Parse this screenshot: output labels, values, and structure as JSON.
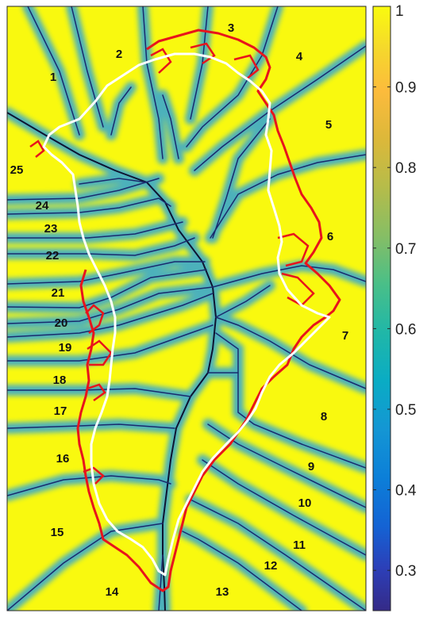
{
  "chart_data": {
    "type": "heatmap",
    "title": "",
    "xlabel": "",
    "ylabel": "",
    "colormap": "parula",
    "color_limits": [
      0.25,
      1
    ],
    "colorbar": {
      "ticks": [
        0.3,
        0.4,
        0.5,
        0.6,
        0.7,
        0.8,
        0.9,
        1
      ],
      "tick_labels": [
        "0.3",
        "0.4",
        "0.5",
        "0.6",
        "0.7",
        "0.8",
        "0.9",
        "1"
      ]
    },
    "regions": [
      "1",
      "2",
      "3",
      "4",
      "5",
      "6",
      "7",
      "8",
      "9",
      "10",
      "11",
      "12",
      "13",
      "14",
      "15",
      "16",
      "17",
      "18",
      "19",
      "20",
      "21",
      "22",
      "23",
      "24",
      "25"
    ],
    "overlays": [
      {
        "name": "coastline",
        "color": "#e8141b"
      },
      {
        "name": "ice margin",
        "color": "#ffffff"
      },
      {
        "name": "basin boundaries",
        "color": "#1a2a6c"
      }
    ]
  }
}
